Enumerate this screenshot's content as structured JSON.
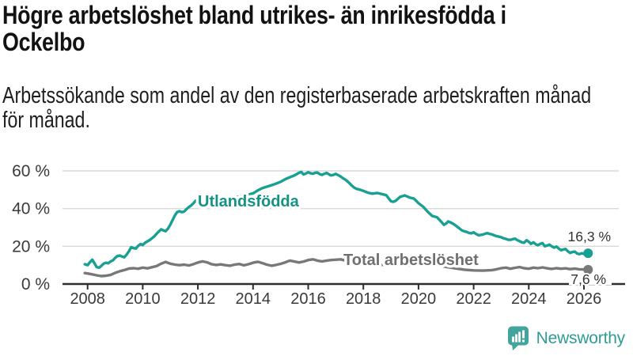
{
  "header": {
    "title": "Högre arbetslöshet bland utrikes- än inrikesfödda i\nOckelbo",
    "subtitle": "Arbetssökande som andel av den registerbaserade arbetskraften månad\nför månad."
  },
  "chart_data": {
    "type": "line",
    "grid": "horizontal",
    "legend_position": "inline-labels",
    "xlim": [
      2007.9,
      2026.9
    ],
    "ylim": [
      0,
      62
    ],
    "xticks": [
      2008,
      2010,
      2012,
      2014,
      2016,
      2018,
      2020,
      2022,
      2024,
      2026
    ],
    "yticks": [
      {
        "value": 0,
        "label": "0 %"
      },
      {
        "value": 20,
        "label": "20 %"
      },
      {
        "value": 40,
        "label": "40 %"
      },
      {
        "value": 60,
        "label": "60 %"
      }
    ],
    "colors": {
      "grid": "#d9d9d9",
      "axis": "#2d2d2d",
      "axis_text": "#3a3a3a",
      "end_label_text": "#333333"
    },
    "series": [
      {
        "name": "Utlandsfödda",
        "slug": "utlandsfodda",
        "color": "#18a092",
        "label_color": "#149284",
        "end_label": "16,3 %",
        "end_value": 16.3,
        "points": [
          [
            2007.9,
            10.5
          ],
          [
            2008.0,
            10.0
          ],
          [
            2008.08,
            11.5
          ],
          [
            2008.17,
            12.9
          ],
          [
            2008.25,
            11.0
          ],
          [
            2008.33,
            9.0
          ],
          [
            2008.42,
            8.7
          ],
          [
            2008.5,
            9.6
          ],
          [
            2008.58,
            10.8
          ],
          [
            2008.67,
            11.3
          ],
          [
            2008.75,
            11.0
          ],
          [
            2008.83,
            11.9
          ],
          [
            2008.92,
            12.6
          ],
          [
            2009.0,
            13.9
          ],
          [
            2009.08,
            14.8
          ],
          [
            2009.17,
            15.1
          ],
          [
            2009.25,
            14.5
          ],
          [
            2009.33,
            14.2
          ],
          [
            2009.42,
            15.7
          ],
          [
            2009.5,
            17.4
          ],
          [
            2009.58,
            19.5
          ],
          [
            2009.67,
            19.0
          ],
          [
            2009.75,
            18.8
          ],
          [
            2009.83,
            20.2
          ],
          [
            2009.92,
            21.2
          ],
          [
            2010.0,
            20.7
          ],
          [
            2010.08,
            21.8
          ],
          [
            2010.17,
            22.6
          ],
          [
            2010.25,
            23.3
          ],
          [
            2010.33,
            24.2
          ],
          [
            2010.42,
            25.3
          ],
          [
            2010.5,
            26.6
          ],
          [
            2010.58,
            27.8
          ],
          [
            2010.67,
            29.0
          ],
          [
            2010.75,
            28.4
          ],
          [
            2010.83,
            28.0
          ],
          [
            2010.92,
            29.5
          ],
          [
            2011.0,
            31.5
          ],
          [
            2011.08,
            33.8
          ],
          [
            2011.17,
            36.5
          ],
          [
            2011.25,
            38.2
          ],
          [
            2011.33,
            38.6
          ],
          [
            2011.42,
            38.1
          ],
          [
            2011.5,
            38.4
          ],
          [
            2011.58,
            39.6
          ],
          [
            2011.67,
            40.8
          ],
          [
            2011.75,
            41.6
          ],
          [
            2011.83,
            42.7
          ],
          [
            2011.92,
            44.2
          ],
          [
            2012.0,
            43.4
          ],
          [
            2012.08,
            44.6
          ],
          [
            2012.17,
            45.9
          ],
          [
            2012.25,
            45.1
          ],
          [
            2012.33,
            44.4
          ],
          [
            2012.42,
            44.0
          ],
          [
            2012.5,
            44.6
          ],
          [
            2012.58,
            45.0
          ],
          [
            2012.67,
            44.4
          ],
          [
            2012.75,
            44.0
          ],
          [
            2012.83,
            44.6
          ],
          [
            2012.92,
            45.0
          ],
          [
            2013.0,
            44.6
          ],
          [
            2013.17,
            45.2
          ],
          [
            2013.33,
            45.9
          ],
          [
            2013.5,
            46.3
          ],
          [
            2013.67,
            46.9
          ],
          [
            2013.83,
            47.4
          ],
          [
            2014.0,
            48.1
          ],
          [
            2014.17,
            49.6
          ],
          [
            2014.33,
            50.8
          ],
          [
            2014.5,
            51.6
          ],
          [
            2014.67,
            52.4
          ],
          [
            2014.83,
            53.2
          ],
          [
            2015.0,
            54.2
          ],
          [
            2015.17,
            55.6
          ],
          [
            2015.33,
            56.6
          ],
          [
            2015.5,
            57.6
          ],
          [
            2015.58,
            58.3
          ],
          [
            2015.67,
            59.0
          ],
          [
            2015.75,
            59.4
          ],
          [
            2015.83,
            58.1
          ],
          [
            2015.92,
            58.6
          ],
          [
            2016.0,
            59.3
          ],
          [
            2016.08,
            58.8
          ],
          [
            2016.17,
            58.5
          ],
          [
            2016.25,
            59.0
          ],
          [
            2016.33,
            59.1
          ],
          [
            2016.42,
            58.3
          ],
          [
            2016.5,
            57.9
          ],
          [
            2016.58,
            58.4
          ],
          [
            2016.67,
            58.9
          ],
          [
            2016.75,
            58.2
          ],
          [
            2016.83,
            57.6
          ],
          [
            2016.92,
            57.9
          ],
          [
            2017.0,
            58.4
          ],
          [
            2017.08,
            57.8
          ],
          [
            2017.17,
            57.1
          ],
          [
            2017.25,
            56.2
          ],
          [
            2017.33,
            55.5
          ],
          [
            2017.42,
            54.5
          ],
          [
            2017.5,
            53.4
          ],
          [
            2017.58,
            52.2
          ],
          [
            2017.67,
            51.1
          ],
          [
            2017.75,
            50.5
          ],
          [
            2017.83,
            50.2
          ],
          [
            2017.92,
            49.8
          ],
          [
            2018.0,
            49.4
          ],
          [
            2018.17,
            48.4
          ],
          [
            2018.33,
            47.9
          ],
          [
            2018.5,
            48.3
          ],
          [
            2018.67,
            47.7
          ],
          [
            2018.83,
            47.1
          ],
          [
            2019.0,
            43.9
          ],
          [
            2019.08,
            43.6
          ],
          [
            2019.17,
            44.1
          ],
          [
            2019.33,
            46.2
          ],
          [
            2019.5,
            47.0
          ],
          [
            2019.67,
            45.9
          ],
          [
            2019.83,
            45.3
          ],
          [
            2019.92,
            44.1
          ],
          [
            2020.0,
            42.9
          ],
          [
            2020.17,
            41.0
          ],
          [
            2020.33,
            38.4
          ],
          [
            2020.5,
            36.1
          ],
          [
            2020.67,
            35.4
          ],
          [
            2020.83,
            33.0
          ],
          [
            2020.92,
            31.4
          ],
          [
            2021.0,
            32.1
          ],
          [
            2021.08,
            33.2
          ],
          [
            2021.17,
            32.6
          ],
          [
            2021.25,
            32.0
          ],
          [
            2021.33,
            31.2
          ],
          [
            2021.42,
            30.2
          ],
          [
            2021.5,
            29.3
          ],
          [
            2021.58,
            28.4
          ],
          [
            2021.67,
            27.9
          ],
          [
            2021.75,
            27.6
          ],
          [
            2021.83,
            27.1
          ],
          [
            2021.92,
            26.9
          ],
          [
            2022.0,
            27.4
          ],
          [
            2022.08,
            26.6
          ],
          [
            2022.17,
            25.9
          ],
          [
            2022.25,
            26.0
          ],
          [
            2022.33,
            26.2
          ],
          [
            2022.42,
            26.7
          ],
          [
            2022.5,
            27.0
          ],
          [
            2022.58,
            26.6
          ],
          [
            2022.67,
            26.3
          ],
          [
            2022.75,
            25.8
          ],
          [
            2022.83,
            25.4
          ],
          [
            2022.92,
            25.1
          ],
          [
            2023.0,
            24.8
          ],
          [
            2023.08,
            24.3
          ],
          [
            2023.17,
            23.9
          ],
          [
            2023.25,
            23.5
          ],
          [
            2023.33,
            23.4
          ],
          [
            2023.42,
            23.8
          ],
          [
            2023.5,
            24.1
          ],
          [
            2023.58,
            23.3
          ],
          [
            2023.67,
            22.7
          ],
          [
            2023.75,
            22.1
          ],
          [
            2023.83,
            21.9
          ],
          [
            2023.92,
            23.2
          ],
          [
            2024.0,
            22.4
          ],
          [
            2024.08,
            21.3
          ],
          [
            2024.17,
            22.1
          ],
          [
            2024.25,
            21.1
          ],
          [
            2024.33,
            20.6
          ],
          [
            2024.42,
            21.3
          ],
          [
            2024.5,
            21.7
          ],
          [
            2024.58,
            20.0
          ],
          [
            2024.67,
            20.4
          ],
          [
            2024.75,
            20.9
          ],
          [
            2024.83,
            20.0
          ],
          [
            2024.92,
            19.3
          ],
          [
            2025.0,
            19.9
          ],
          [
            2025.08,
            18.9
          ],
          [
            2025.17,
            17.9
          ],
          [
            2025.25,
            18.3
          ],
          [
            2025.33,
            18.6
          ],
          [
            2025.42,
            17.3
          ],
          [
            2025.5,
            16.5
          ],
          [
            2025.58,
            17.0
          ],
          [
            2025.67,
            17.2
          ],
          [
            2025.75,
            16.2
          ],
          [
            2025.83,
            15.8
          ],
          [
            2025.92,
            16.3
          ],
          [
            2026.0,
            16.0
          ],
          [
            2026.08,
            15.8
          ],
          [
            2026.15,
            16.3
          ]
        ]
      },
      {
        "name": "Total arbetslöshet",
        "slug": "total-arbetsloshet",
        "color": "#787878",
        "label_color": "#6f6f6f",
        "end_label": "7,6 %",
        "end_value": 7.6,
        "points": [
          [
            2007.9,
            5.8
          ],
          [
            2008.0,
            5.6
          ],
          [
            2008.17,
            5.1
          ],
          [
            2008.33,
            4.6
          ],
          [
            2008.5,
            4.2
          ],
          [
            2008.67,
            4.4
          ],
          [
            2008.83,
            4.8
          ],
          [
            2009.0,
            5.9
          ],
          [
            2009.17,
            6.8
          ],
          [
            2009.33,
            7.4
          ],
          [
            2009.5,
            8.2
          ],
          [
            2009.67,
            8.4
          ],
          [
            2009.83,
            8.1
          ],
          [
            2010.0,
            8.7
          ],
          [
            2010.17,
            8.3
          ],
          [
            2010.33,
            8.9
          ],
          [
            2010.5,
            9.5
          ],
          [
            2010.67,
            10.8
          ],
          [
            2010.83,
            11.7
          ],
          [
            2010.92,
            11.2
          ],
          [
            2011.0,
            10.8
          ],
          [
            2011.17,
            10.3
          ],
          [
            2011.33,
            10.0
          ],
          [
            2011.5,
            10.3
          ],
          [
            2011.67,
            9.8
          ],
          [
            2011.83,
            10.5
          ],
          [
            2012.0,
            11.4
          ],
          [
            2012.17,
            12.0
          ],
          [
            2012.33,
            11.5
          ],
          [
            2012.5,
            10.5
          ],
          [
            2012.67,
            10.1
          ],
          [
            2012.83,
            10.4
          ],
          [
            2013.0,
            10.0
          ],
          [
            2013.17,
            9.7
          ],
          [
            2013.33,
            10.3
          ],
          [
            2013.5,
            10.6
          ],
          [
            2013.67,
            9.9
          ],
          [
            2013.83,
            10.5
          ],
          [
            2014.0,
            11.3
          ],
          [
            2014.17,
            11.8
          ],
          [
            2014.33,
            11.1
          ],
          [
            2014.5,
            10.3
          ],
          [
            2014.67,
            9.7
          ],
          [
            2014.83,
            10.1
          ],
          [
            2015.0,
            10.7
          ],
          [
            2015.17,
            11.5
          ],
          [
            2015.33,
            12.4
          ],
          [
            2015.5,
            11.9
          ],
          [
            2015.67,
            11.4
          ],
          [
            2015.83,
            11.9
          ],
          [
            2016.0,
            12.7
          ],
          [
            2016.17,
            13.1
          ],
          [
            2016.33,
            12.4
          ],
          [
            2016.5,
            12.0
          ],
          [
            2016.67,
            12.4
          ],
          [
            2016.83,
            12.7
          ],
          [
            2017.0,
            12.9
          ],
          [
            2017.17,
            13.1
          ],
          [
            2017.33,
            12.5
          ],
          [
            2017.5,
            12.0
          ],
          [
            2017.67,
            11.6
          ],
          [
            2017.83,
            11.2
          ],
          [
            2018.0,
            11.0
          ],
          [
            2018.33,
            10.6
          ],
          [
            2018.67,
            10.2
          ],
          [
            2019.0,
            10.0
          ],
          [
            2019.33,
            9.6
          ],
          [
            2019.67,
            9.9
          ],
          [
            2020.0,
            10.3
          ],
          [
            2020.33,
            10.6
          ],
          [
            2020.67,
            9.9
          ],
          [
            2021.0,
            9.1
          ],
          [
            2021.33,
            8.3
          ],
          [
            2021.67,
            7.6
          ],
          [
            2022.0,
            7.2
          ],
          [
            2022.33,
            7.1
          ],
          [
            2022.67,
            7.4
          ],
          [
            2022.83,
            7.8
          ],
          [
            2023.0,
            8.4
          ],
          [
            2023.17,
            8.7
          ],
          [
            2023.33,
            8.1
          ],
          [
            2023.5,
            8.6
          ],
          [
            2023.67,
            9.0
          ],
          [
            2023.83,
            8.4
          ],
          [
            2024.0,
            8.1
          ],
          [
            2024.17,
            8.7
          ],
          [
            2024.33,
            8.4
          ],
          [
            2024.5,
            8.8
          ],
          [
            2024.67,
            8.3
          ],
          [
            2024.83,
            8.0
          ],
          [
            2025.0,
            8.4
          ],
          [
            2025.17,
            8.1
          ],
          [
            2025.33,
            8.3
          ],
          [
            2025.5,
            7.9
          ],
          [
            2025.67,
            8.2
          ],
          [
            2025.83,
            7.8
          ],
          [
            2026.0,
            7.7
          ],
          [
            2026.15,
            7.6
          ]
        ]
      }
    ]
  },
  "footer": {
    "brand": "Newsworthy",
    "logo_color": "#43a39d",
    "logo_text_color": "#2e9c93"
  }
}
